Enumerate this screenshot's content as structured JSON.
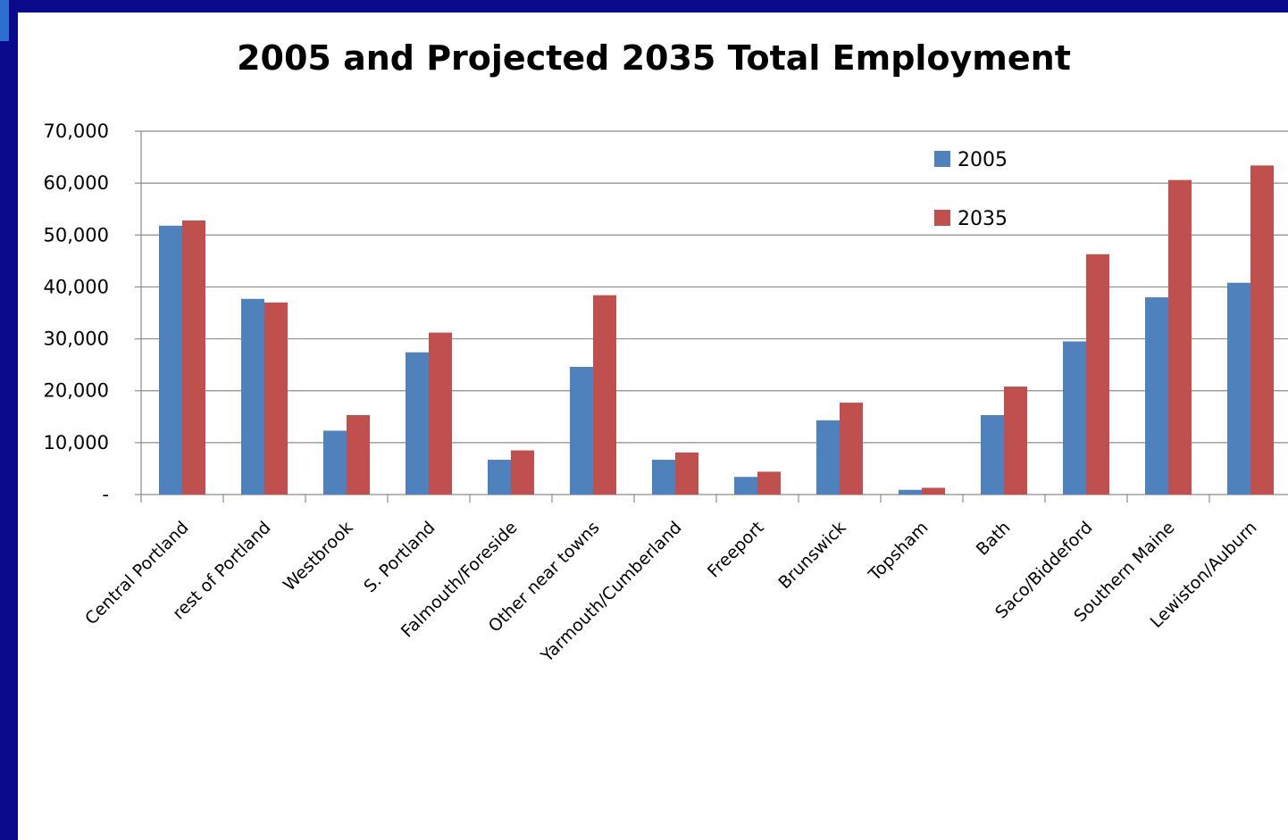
{
  "chart_data": {
    "type": "bar",
    "title": "2005 and Projected 2035 Total Employment",
    "categories": [
      "Central Portland",
      "rest of Portland",
      "Westbrook",
      "S. Portland",
      "Falmouth/Foreside",
      "Other near towns",
      "Yarmouth/Cumberland",
      "Freeport",
      "Brunswick",
      "Topsham",
      "Bath",
      "Saco/Biddeford",
      "Southern Maine",
      "Lewiston/Auburn"
    ],
    "series": [
      {
        "name": "2005",
        "color": "#4f81bd",
        "values": [
          51800,
          37700,
          12300,
          27400,
          6700,
          24600,
          6700,
          3400,
          14300,
          900,
          15300,
          29500,
          38000,
          40800
        ]
      },
      {
        "name": "2035",
        "color": "#c0504d",
        "values": [
          52800,
          37000,
          15300,
          31200,
          8500,
          38400,
          8100,
          4400,
          17700,
          1300,
          20800,
          46300,
          60600,
          63400
        ]
      }
    ],
    "y_ticks": [
      "-",
      "10,000",
      "20,000",
      "30,000",
      "40,000",
      "50,000",
      "60,000",
      "70,000"
    ],
    "ylim": [
      0,
      70000
    ],
    "grid": true,
    "legend_position": "top-right"
  }
}
